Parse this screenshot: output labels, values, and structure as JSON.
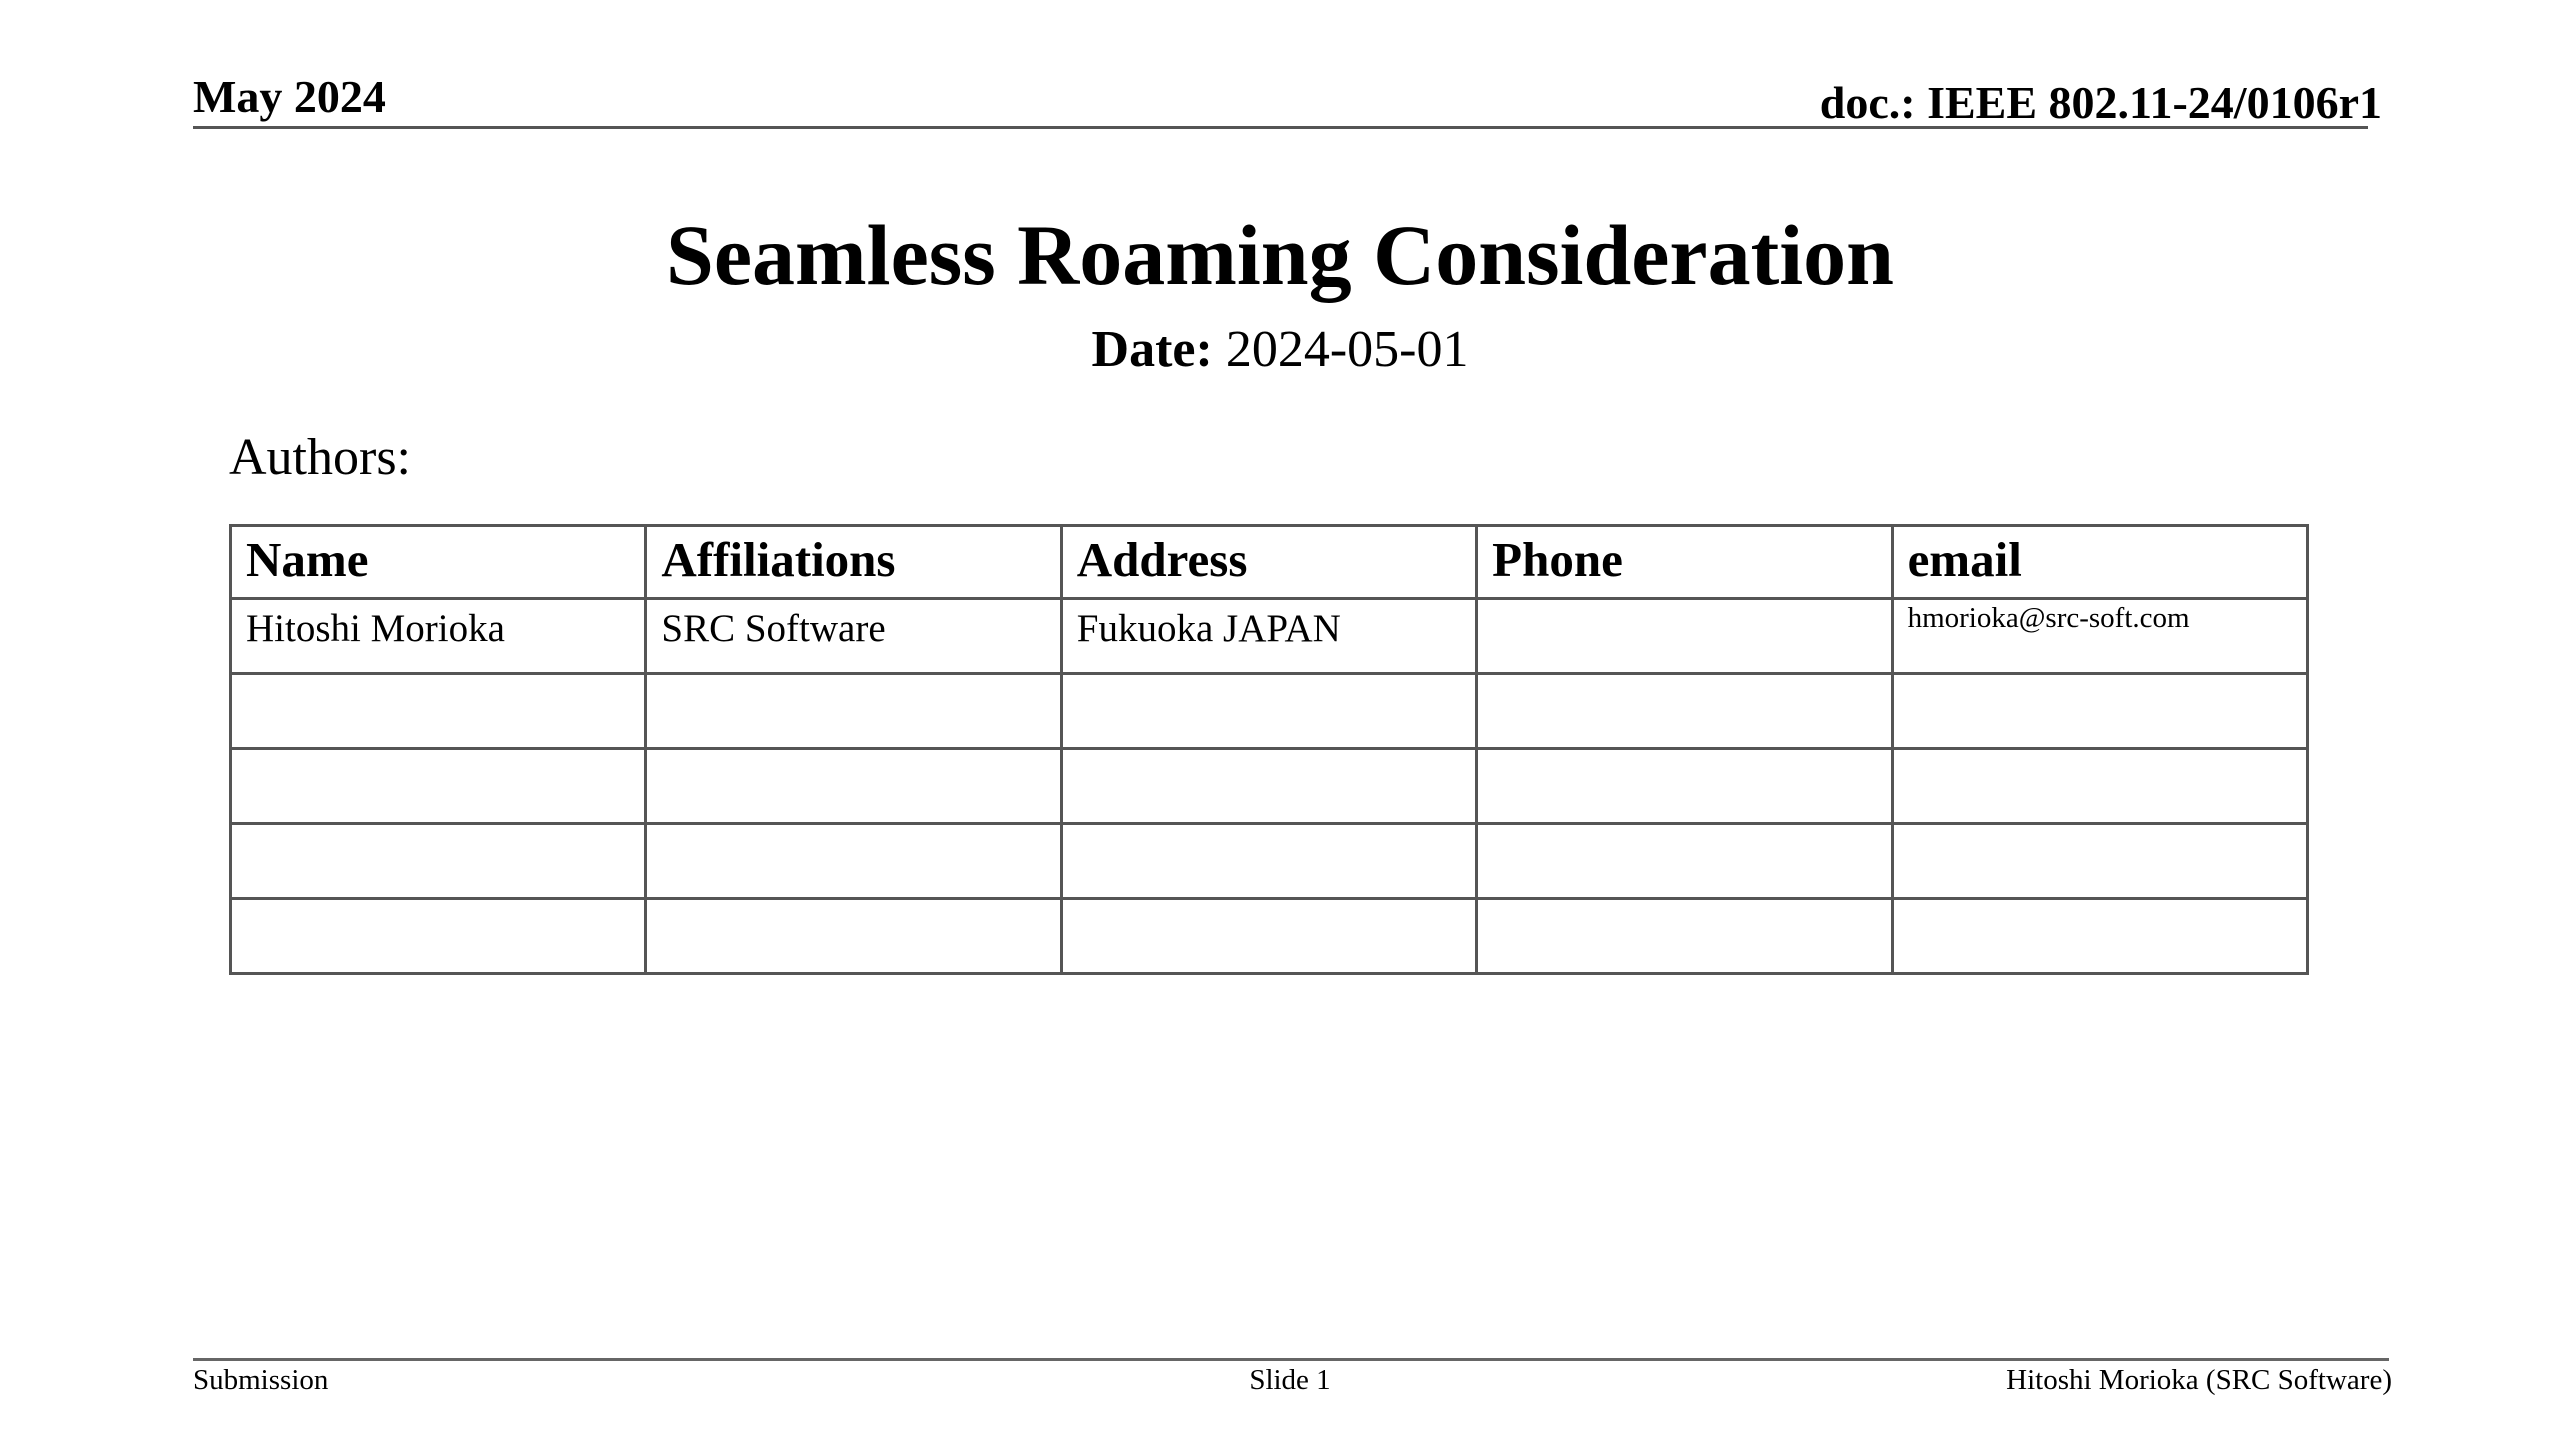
{
  "header": {
    "date": "May 2024",
    "doc_id": "doc.: IEEE 802.11-24/0106r1"
  },
  "title": "Seamless Roaming Consideration",
  "date_label": "Date:",
  "date_value": " 2024-05-01",
  "authors_label": "Authors:",
  "table": {
    "columns": [
      "Name",
      "Affiliations",
      "Address",
      "Phone",
      "email"
    ],
    "rows": [
      [
        "Hitoshi Morioka",
        "SRC Software",
        "Fukuoka JAPAN",
        "",
        "hmorioka@src-soft.com"
      ],
      [
        "",
        "",
        "",
        "",
        ""
      ],
      [
        "",
        "",
        "",
        "",
        ""
      ],
      [
        "",
        "",
        "",
        "",
        ""
      ],
      [
        "",
        "",
        "",
        "",
        ""
      ]
    ]
  },
  "footer": {
    "left": "Submission",
    "center": "Slide 1",
    "right": "Hitoshi Morioka (SRC Software)"
  }
}
